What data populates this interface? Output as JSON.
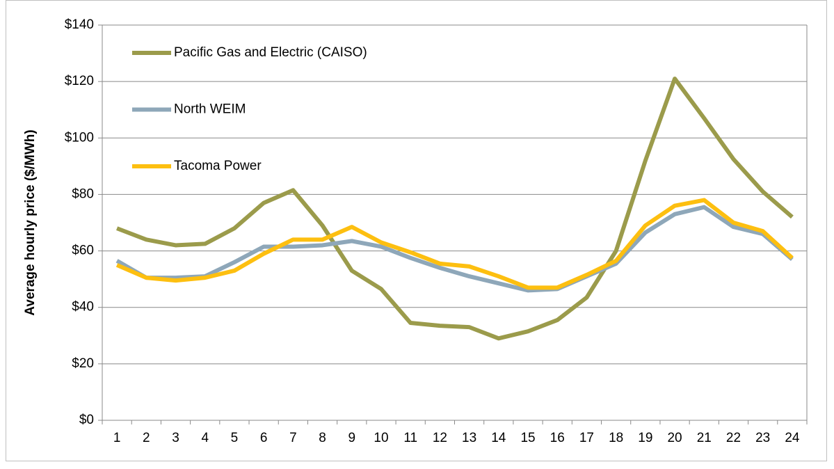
{
  "chart_data": {
    "type": "line",
    "y_label": "Average hourly price ($/MWh)",
    "categories": [
      "1",
      "2",
      "3",
      "4",
      "5",
      "6",
      "7",
      "8",
      "9",
      "10",
      "11",
      "12",
      "13",
      "14",
      "15",
      "16",
      "17",
      "18",
      "19",
      "20",
      "21",
      "22",
      "23",
      "24"
    ],
    "series": [
      {
        "name": "Pacific Gas and Electric (CAISO)",
        "color": "#9b9b4b",
        "values": [
          68,
          64,
          62,
          62.5,
          68,
          77,
          81.5,
          69,
          53,
          46.5,
          34.5,
          33.5,
          33,
          29,
          31.5,
          35.5,
          43.5,
          60,
          92,
          121,
          107,
          92.5,
          81,
          72
        ]
      },
      {
        "name": "North WEIM",
        "color": "#8ea7b9",
        "values": [
          56.5,
          50.5,
          50.5,
          51,
          56,
          61.5,
          61.5,
          62,
          63.5,
          61.5,
          57.5,
          54,
          51,
          48.5,
          46,
          46.5,
          51,
          55.5,
          66.5,
          73,
          75.5,
          68.5,
          66,
          57
        ]
      },
      {
        "name": "Tacoma Power",
        "color": "#fdbf10",
        "values": [
          55,
          50.5,
          49.5,
          50.5,
          53,
          59,
          64,
          64,
          68.5,
          63,
          59.5,
          55.5,
          54.5,
          51,
          47,
          47,
          51.5,
          56.5,
          69,
          76,
          78,
          70,
          67,
          57.5
        ]
      }
    ],
    "ylim": [
      0,
      140
    ],
    "yticks": [
      {
        "value": 0,
        "label": "$0"
      },
      {
        "value": 20,
        "label": "$20"
      },
      {
        "value": 40,
        "label": "$40"
      },
      {
        "value": 60,
        "label": "$60"
      },
      {
        "value": 80,
        "label": "$80"
      },
      {
        "value": 100,
        "label": "$100"
      },
      {
        "value": 120,
        "label": "$120"
      },
      {
        "value": 140,
        "label": "$140"
      }
    ],
    "grid": true,
    "legend": "top-left"
  }
}
